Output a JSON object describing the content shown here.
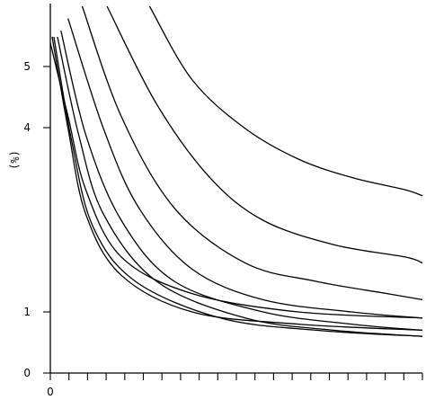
{
  "chart_data": {
    "type": "line",
    "ylabel": "(%)",
    "y_tick_labels": [
      "0",
      "1",
      "4",
      "5"
    ],
    "x_tick_labels": [
      "0"
    ],
    "x_minor_tick_count": 21,
    "grid": false,
    "legend": false,
    "series": [
      {
        "values": [
          [
            0.0,
            5.4
          ],
          [
            0.5,
            4.2
          ],
          [
            1.0,
            3.0
          ],
          [
            2.0,
            1.9
          ],
          [
            4.0,
            1.3
          ],
          [
            7.0,
            1.0
          ],
          [
            10.5,
            0.9
          ]
        ]
      },
      {
        "values": [
          [
            0.05,
            5.5
          ],
          [
            0.5,
            4.0
          ],
          [
            1.0,
            2.6
          ],
          [
            2.0,
            1.6
          ],
          [
            4.0,
            1.0
          ],
          [
            7.0,
            0.8
          ],
          [
            10.5,
            0.7
          ]
        ]
      },
      {
        "values": [
          [
            0.1,
            5.5
          ],
          [
            0.6,
            3.8
          ],
          [
            1.2,
            2.4
          ],
          [
            2.4,
            1.5
          ],
          [
            4.8,
            0.9
          ],
          [
            7.5,
            0.7
          ],
          [
            10.5,
            0.6
          ]
        ]
      },
      {
        "values": [
          [
            0.2,
            5.5
          ],
          [
            0.8,
            3.9
          ],
          [
            1.5,
            2.6
          ],
          [
            3.0,
            1.5
          ],
          [
            5.5,
            0.9
          ],
          [
            8.0,
            0.7
          ],
          [
            10.5,
            0.6
          ]
        ]
      },
      {
        "values": [
          [
            0.3,
            5.6
          ],
          [
            1.0,
            3.9
          ],
          [
            2.0,
            2.5
          ],
          [
            3.5,
            1.5
          ],
          [
            6.0,
            1.0
          ],
          [
            8.5,
            0.8
          ],
          [
            10.5,
            0.7
          ]
        ]
      },
      {
        "values": [
          [
            0.5,
            5.8
          ],
          [
            1.5,
            4.0
          ],
          [
            2.5,
            2.7
          ],
          [
            4.0,
            1.7
          ],
          [
            6.0,
            1.2
          ],
          [
            8.5,
            1.0
          ],
          [
            10.5,
            0.9
          ]
        ]
      },
      {
        "values": [
          [
            0.9,
            6.0
          ],
          [
            2.0,
            4.2
          ],
          [
            3.5,
            2.7
          ],
          [
            5.5,
            1.8
          ],
          [
            7.5,
            1.5
          ],
          [
            9.5,
            1.3
          ],
          [
            10.5,
            1.2
          ]
        ]
      },
      {
        "values": [
          [
            1.6,
            6.0
          ],
          [
            3.0,
            4.4
          ],
          [
            4.5,
            3.2
          ],
          [
            6.0,
            2.5
          ],
          [
            8.0,
            2.1
          ],
          [
            10.0,
            1.9
          ],
          [
            10.5,
            1.8
          ]
        ]
      },
      {
        "values": [
          [
            2.8,
            6.0
          ],
          [
            4.0,
            4.8
          ],
          [
            5.5,
            4.0
          ],
          [
            7.0,
            3.5
          ],
          [
            8.5,
            3.2
          ],
          [
            10.0,
            3.0
          ],
          [
            10.5,
            2.9
          ]
        ]
      }
    ]
  }
}
